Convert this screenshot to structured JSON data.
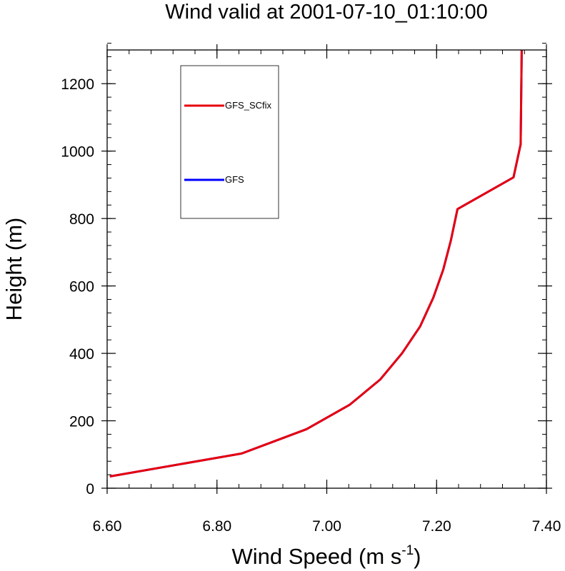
{
  "chart_data": {
    "type": "line",
    "title": "Wind valid at 2001-07-10_01:10:00",
    "xlabel": "Wind Speed (m s",
    "xlabel_superscript": "-1",
    "xlabel_suffix": ")",
    "ylabel": "Height (m)",
    "xlim": [
      6.6,
      7.4
    ],
    "ylim": [
      0,
      1300
    ],
    "x_ticks": [
      6.6,
      6.8,
      7.0,
      7.2,
      7.4
    ],
    "x_tick_labels": [
      "6.60",
      "6.80",
      "7.00",
      "7.20",
      "7.40"
    ],
    "y_ticks": [
      0,
      200,
      400,
      600,
      800,
      1000,
      1200
    ],
    "y_tick_labels": [
      "0",
      "200",
      "400",
      "600",
      "800",
      "1000",
      "1200"
    ],
    "x_minor_step": 0.04,
    "y_minor_step": 40,
    "grid": false,
    "legend_position": "top-left",
    "series": [
      {
        "name": "GFS",
        "color": "#0000ff",
        "x": [
          6.605,
          6.845,
          6.963,
          7.042,
          7.097,
          7.137,
          7.17,
          7.194,
          7.212,
          7.226,
          7.238,
          7.34,
          7.353,
          7.354,
          7.355
        ],
        "y": [
          35,
          103,
          175,
          248,
          322,
          400,
          480,
          565,
          648,
          735,
          828,
          922,
          1020,
          1150,
          1300
        ]
      },
      {
        "name": "GFS_SCfix",
        "color": "#e8000b",
        "x": [
          6.605,
          6.845,
          6.963,
          7.042,
          7.097,
          7.137,
          7.17,
          7.194,
          7.212,
          7.226,
          7.238,
          7.34,
          7.353,
          7.354,
          7.355
        ],
        "y": [
          35,
          103,
          175,
          248,
          322,
          400,
          480,
          565,
          648,
          735,
          828,
          922,
          1020,
          1150,
          1300
        ]
      }
    ],
    "legend_order": [
      "GFS_SCfix",
      "GFS"
    ]
  }
}
